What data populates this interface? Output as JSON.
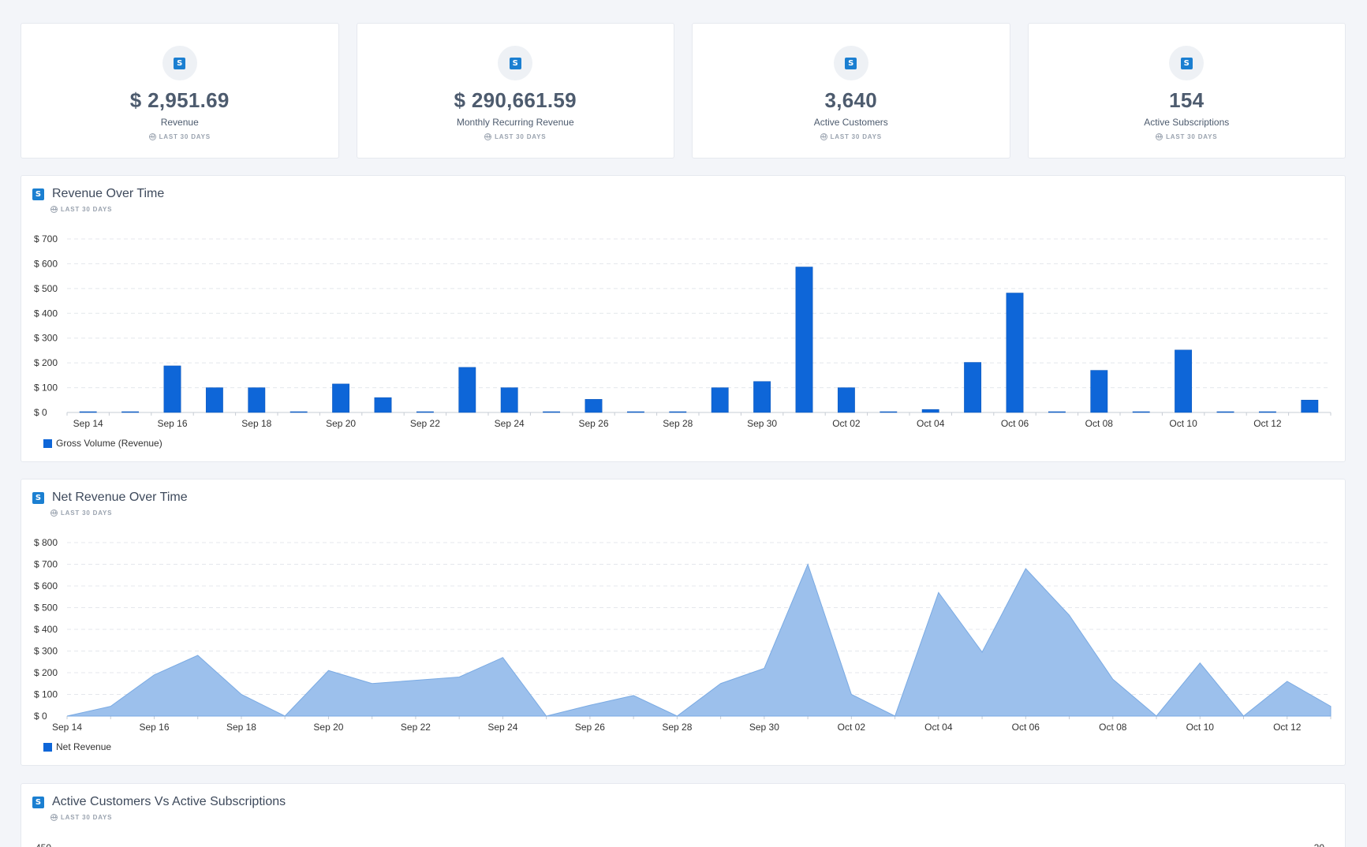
{
  "stats": [
    {
      "value": "$ 2,951.69",
      "label": "Revenue",
      "range": "LAST 30 DAYS",
      "icon": "stripe-s-icon"
    },
    {
      "value": "$ 290,661.59",
      "label": "Monthly Recurring Revenue",
      "range": "LAST 30 DAYS",
      "icon": "stripe-s-icon"
    },
    {
      "value": "3,640",
      "label": "Active Customers",
      "range": "LAST 30 DAYS",
      "icon": "stripe-s-icon"
    },
    {
      "value": "154",
      "label": "Active Subscriptions",
      "range": "LAST 30 DAYS",
      "icon": "stripe-s-icon"
    }
  ],
  "icon_letter": "S",
  "colors": {
    "accent": "#1b7fd1",
    "bar": "#0e66d8",
    "area": "#9cc0ec",
    "area_stroke": "#7aaae3"
  },
  "panels": {
    "revenue": {
      "title": "Revenue Over Time",
      "range": "LAST 30 DAYS"
    },
    "net": {
      "title": "Net Revenue Over Time",
      "range": "LAST 30 DAYS"
    },
    "customers": {
      "title": "Active Customers Vs Active Subscriptions",
      "range": "LAST 30 DAYS",
      "left_tick": "450",
      "right_tick": "20"
    }
  },
  "chart_data": [
    {
      "type": "bar",
      "title": "Revenue Over Time",
      "categories": [
        "Sep 14",
        "Sep 15",
        "Sep 16",
        "Sep 17",
        "Sep 18",
        "Sep 19",
        "Sep 20",
        "Sep 21",
        "Sep 22",
        "Sep 23",
        "Sep 24",
        "Sep 25",
        "Sep 26",
        "Sep 27",
        "Sep 28",
        "Sep 29",
        "Sep 30",
        "Oct 01",
        "Oct 02",
        "Oct 03",
        "Oct 04",
        "Oct 05",
        "Oct 06",
        "Oct 07",
        "Oct 08",
        "Oct 09",
        "Oct 10",
        "Oct 11",
        "Oct 12",
        "Oct 13"
      ],
      "tick_labels": [
        "Sep 14",
        "Sep 16",
        "Sep 18",
        "Sep 20",
        "Sep 22",
        "Sep 24",
        "Sep 26",
        "Sep 28",
        "Sep 30",
        "Oct 02",
        "Oct 04",
        "Oct 06",
        "Oct 08",
        "Oct 10",
        "Oct 12"
      ],
      "series": [
        {
          "name": "Gross Volume (Revenue)",
          "values": [
            0,
            0,
            188,
            100,
            100,
            0,
            115,
            60,
            0,
            182,
            100,
            0,
            53,
            0,
            0,
            100,
            125,
            587,
            100,
            0,
            12,
            202,
            482,
            0,
            170,
            0,
            252,
            0,
            0,
            50
          ]
        }
      ],
      "yticks": [
        "$ 0",
        "$ 100",
        "$ 200",
        "$ 300",
        "$ 400",
        "$ 500",
        "$ 600",
        "$ 700"
      ],
      "ylim": [
        0,
        700
      ],
      "grid": true,
      "legend": "bottom-left"
    },
    {
      "type": "area",
      "title": "Net Revenue Over Time",
      "categories": [
        "Sep 14",
        "Sep 15",
        "Sep 16",
        "Sep 17",
        "Sep 18",
        "Sep 19",
        "Sep 20",
        "Sep 21",
        "Sep 22",
        "Sep 23",
        "Sep 24",
        "Sep 25",
        "Sep 26",
        "Sep 27",
        "Sep 28",
        "Sep 29",
        "Sep 30",
        "Oct 01",
        "Oct 02",
        "Oct 03",
        "Oct 04",
        "Oct 05",
        "Oct 06",
        "Oct 07",
        "Oct 08",
        "Oct 09",
        "Oct 10",
        "Oct 11",
        "Oct 12",
        "Oct 13"
      ],
      "tick_labels": [
        "Sep 14",
        "Sep 16",
        "Sep 18",
        "Sep 20",
        "Sep 22",
        "Sep 24",
        "Sep 26",
        "Sep 28",
        "Sep 30",
        "Oct 02",
        "Oct 04",
        "Oct 06",
        "Oct 08",
        "Oct 10",
        "Oct 12"
      ],
      "series": [
        {
          "name": "Net Revenue",
          "values": [
            0,
            45,
            190,
            280,
            100,
            0,
            210,
            150,
            165,
            180,
            270,
            0,
            50,
            95,
            0,
            150,
            220,
            700,
            100,
            0,
            570,
            295,
            680,
            465,
            170,
            0,
            245,
            0,
            160,
            45
          ]
        }
      ],
      "yticks": [
        "$ 0",
        "$ 100",
        "$ 200",
        "$ 300",
        "$ 400",
        "$ 500",
        "$ 600",
        "$ 700",
        "$ 800"
      ],
      "ylim": [
        0,
        800
      ],
      "grid": true,
      "legend": "bottom-left"
    }
  ]
}
